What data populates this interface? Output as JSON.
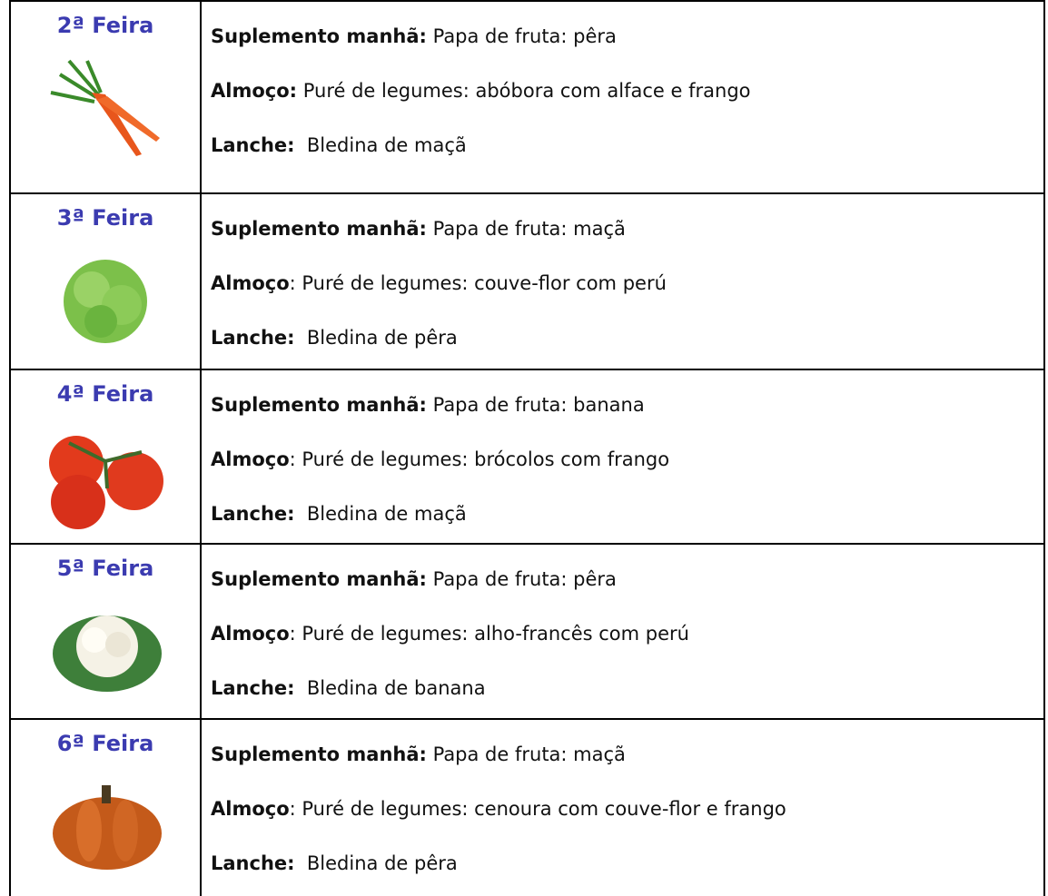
{
  "table": {
    "rows": [
      {
        "day": "2ª Feira",
        "meals": [
          {
            "label": "Suplemento manhã:",
            "text": " Papa de fruta: pêra"
          },
          {
            "label": "Almoço:",
            "text": " Puré de legumes: abóbora com alface e frango"
          },
          {
            "label": "Lanche:",
            "text": "  Bledina de maçã"
          }
        ]
      },
      {
        "day": "3ª Feira",
        "meals": [
          {
            "label": "Suplemento manhã:",
            "text": " Papa de fruta: maçã"
          },
          {
            "label": "Almoço",
            "text": ": Puré de legumes: couve-flor com perú"
          },
          {
            "label": "Lanche:",
            "text": "  Bledina de pêra"
          }
        ]
      },
      {
        "day": "4ª Feira",
        "meals": [
          {
            "label": "Suplemento manhã:",
            "text": " Papa de fruta: banana"
          },
          {
            "label": "Almoço",
            "text": ": Puré de legumes: brócolos com frango"
          },
          {
            "label": "Lanche:",
            "text": "  Bledina de maçã"
          }
        ]
      },
      {
        "day": "5ª Feira",
        "meals": [
          {
            "label": "Suplemento manhã:",
            "text": " Papa de fruta: pêra"
          },
          {
            "label": "Almoço",
            "text": ": Puré de legumes: alho-francês com perú"
          },
          {
            "label": "Lanche:",
            "text": "  Bledina de banana"
          }
        ]
      },
      {
        "day": "6ª Feira",
        "meals": [
          {
            "label": "Suplemento manhã:",
            "text": " Papa de fruta: maçã"
          },
          {
            "label": "Almoço",
            "text": ": Puré de legumes: cenoura com couve-flor e frango"
          },
          {
            "label": "Lanche:",
            "text": "  Bledina de pêra"
          }
        ]
      }
    ]
  }
}
